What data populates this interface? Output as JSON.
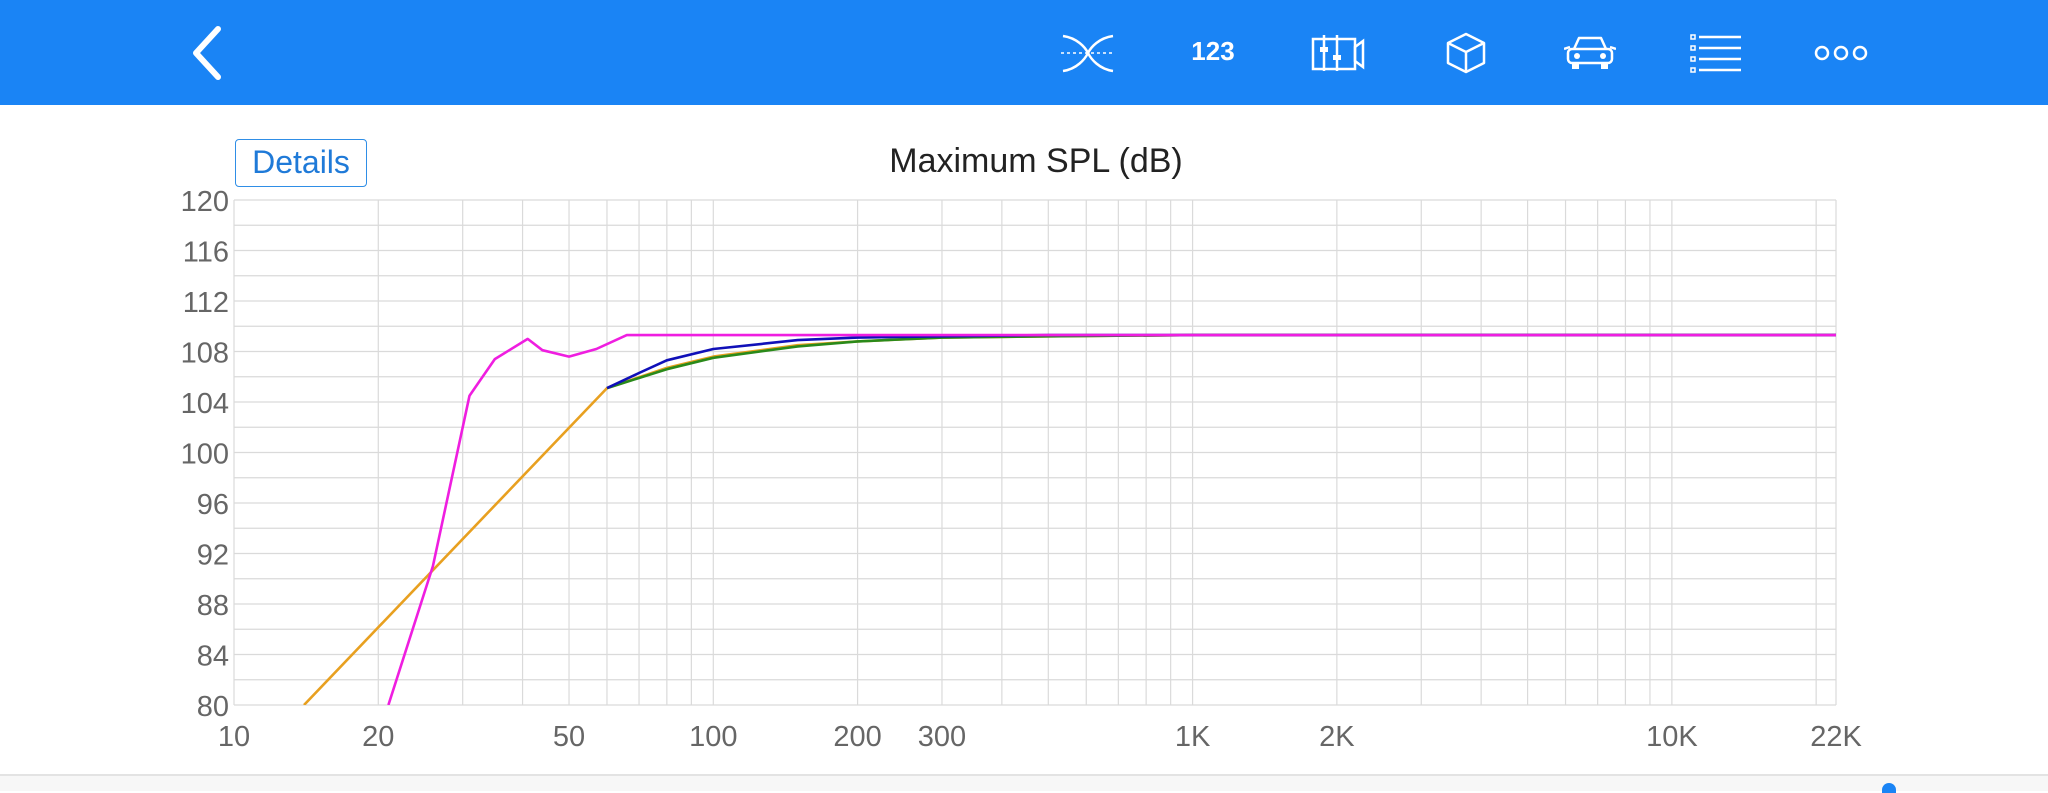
{
  "toolbar": {
    "back": {
      "icon": "chevron-left-icon"
    },
    "icons": [
      "crossover-icon",
      "numbers-icon",
      "enclosure-icon",
      "box-icon",
      "car-icon",
      "list-icon",
      "more-icon"
    ],
    "numbers_label": "123",
    "colors": {
      "bar": "#1a84f5",
      "icon": "#ffffff"
    }
  },
  "details_label": "Details",
  "chart_data": {
    "type": "line",
    "title": "Maximum SPL (dB)",
    "xlabel": "",
    "ylabel": "",
    "x_scale": "log",
    "xlim": [
      10,
      22000
    ],
    "ylim": [
      80,
      120
    ],
    "yticks": [
      80,
      84,
      88,
      92,
      96,
      100,
      104,
      108,
      112,
      116,
      120
    ],
    "xticks": [
      {
        "value": 10,
        "label": "10"
      },
      {
        "value": 20,
        "label": "20"
      },
      {
        "value": 50,
        "label": "50"
      },
      {
        "value": 100,
        "label": "100"
      },
      {
        "value": 200,
        "label": "200"
      },
      {
        "value": 300,
        "label": "300"
      },
      {
        "value": 1000,
        "label": "1K"
      },
      {
        "value": 2000,
        "label": "2K"
      },
      {
        "value": 10000,
        "label": "10K"
      },
      {
        "value": 22000,
        "label": "22K"
      }
    ],
    "grid": true,
    "series": [
      {
        "color": "#e8a020",
        "x": [
          14,
          60,
          80,
          100,
          150,
          200,
          300,
          500,
          1000,
          22000
        ],
        "y": [
          80,
          105.1,
          106.7,
          107.6,
          108.5,
          108.8,
          109.1,
          109.2,
          109.3,
          109.3
        ]
      },
      {
        "color": "#2a8a1a",
        "x": [
          60,
          80,
          100,
          150,
          200,
          300,
          500,
          1000,
          22000
        ],
        "y": [
          105.1,
          106.6,
          107.5,
          108.4,
          108.8,
          109.1,
          109.2,
          109.3,
          109.3
        ]
      },
      {
        "color": "#1010b8",
        "x": [
          60,
          70,
          80,
          100,
          150,
          200,
          300,
          500,
          22000
        ],
        "y": [
          105.1,
          106.3,
          107.3,
          108.2,
          108.9,
          109.1,
          109.2,
          109.3,
          109.3
        ]
      },
      {
        "color": "#ef1ee0",
        "x": [
          21,
          26,
          31,
          35,
          41,
          44,
          50,
          57,
          66,
          70,
          100,
          1000,
          22000
        ],
        "y": [
          80,
          91,
          104.5,
          107.4,
          109,
          108.1,
          107.6,
          108.2,
          109.3,
          109.3,
          109.3,
          109.3,
          109.3
        ]
      }
    ]
  }
}
